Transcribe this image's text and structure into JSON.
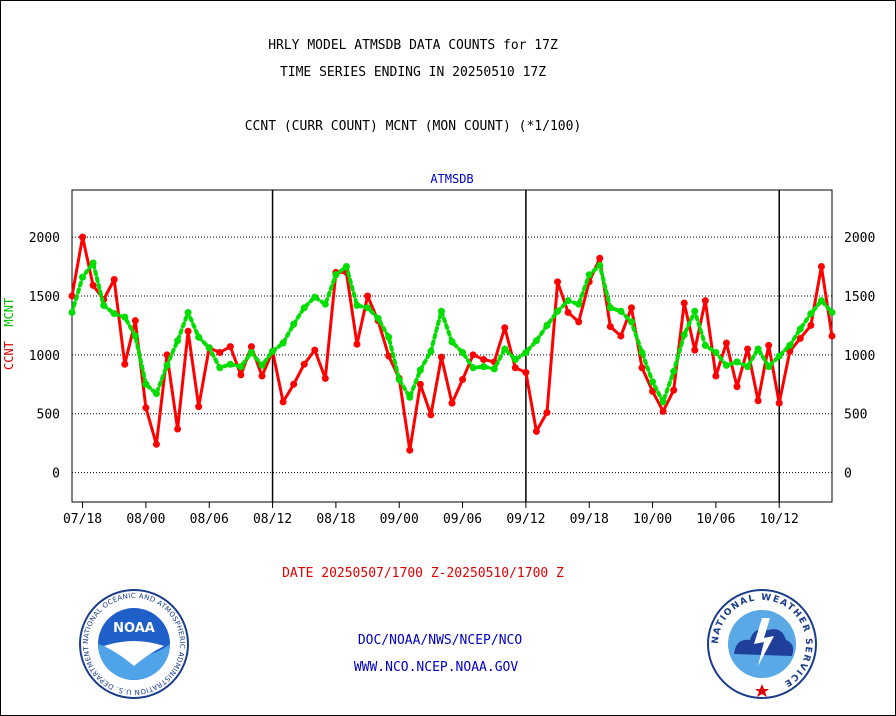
{
  "header": {
    "title_line1": "HRLY MODEL ATMSDB DATA COUNTS for 17Z",
    "title_line2": "TIME SERIES ENDING IN 20250510 17Z",
    "subtitle": "CCNT (CURR COUNT) MCNT (MON COUNT) (*1/100)"
  },
  "footer": {
    "date_range": "DATE 20250507/1700 Z-20250510/1700 Z",
    "credit_line1": "DOC/NOAA/NWS/NCEP/NCO",
    "credit_line2": "WWW.NCO.NCEP.NOAA.GOV",
    "noaa_logo_text": "NOAA",
    "noaa_ring_text": "NATIONAL OCEANIC AND ATMOSPHERIC ADMINISTRATION U.S. DEPARTMENT OF COMMERCE",
    "nws_ring_text": "NATIONAL WEATHER SERVICE"
  },
  "chart_data": {
    "type": "line",
    "panel_label": "ATMSDB",
    "ylabel_left_part1": "CCNT",
    "ylabel_left_part2": "MCNT",
    "ylim": [
      -250,
      2400
    ],
    "yticks": [
      0,
      500,
      1000,
      1500,
      2000
    ],
    "ytick_labels": [
      "0",
      "500",
      "1000",
      "1500",
      "2000"
    ],
    "grid": true,
    "x_tick_labels": [
      "07/18",
      "08/00",
      "08/06",
      "08/12",
      "08/18",
      "09/00",
      "09/06",
      "09/12",
      "09/18",
      "10/00",
      "10/06",
      "10/12"
    ],
    "x_tick_index": [
      1,
      7,
      13,
      19,
      25,
      31,
      37,
      43,
      49,
      55,
      61,
      67
    ],
    "day_boundary_index": [
      19,
      43,
      67
    ],
    "x_domain": [
      0,
      72
    ],
    "series": [
      {
        "name": "CCNT",
        "color": "#ff0000",
        "style": "solid",
        "values": [
          1500,
          2000,
          1590,
          1470,
          1640,
          920,
          1290,
          550,
          240,
          1000,
          370,
          1200,
          560,
          1060,
          1020,
          1070,
          830,
          1070,
          820,
          1030,
          600,
          750,
          920,
          1040,
          800,
          1700,
          1700,
          1090,
          1500,
          1290,
          990,
          800,
          190,
          750,
          490,
          980,
          590,
          790,
          1000,
          960,
          940,
          1230,
          890,
          850,
          350,
          510,
          1620,
          1360,
          1280,
          1620,
          1820,
          1240,
          1160,
          1400,
          890,
          690,
          520,
          700,
          1440,
          1040,
          1460,
          820,
          1100,
          730,
          1050,
          610,
          1080,
          590,
          1030,
          1140,
          1250,
          1750,
          1160
        ]
      },
      {
        "name": "MCNT",
        "color": "#00dd00",
        "style": "dotted",
        "values": [
          1360,
          1660,
          1780,
          1420,
          1350,
          1320,
          1160,
          750,
          670,
          910,
          1120,
          1360,
          1150,
          1060,
          890,
          920,
          900,
          1020,
          910,
          1030,
          1100,
          1260,
          1400,
          1490,
          1430,
          1680,
          1750,
          1420,
          1400,
          1310,
          1150,
          790,
          640,
          870,
          1030,
          1370,
          1110,
          1020,
          890,
          900,
          880,
          1050,
          960,
          1020,
          1120,
          1250,
          1370,
          1460,
          1430,
          1680,
          1760,
          1400,
          1370,
          1280,
          1020,
          770,
          600,
          860,
          1170,
          1370,
          1080,
          1020,
          910,
          940,
          900,
          1050,
          900,
          990,
          1080,
          1220,
          1350,
          1460,
          1360
        ]
      }
    ]
  }
}
